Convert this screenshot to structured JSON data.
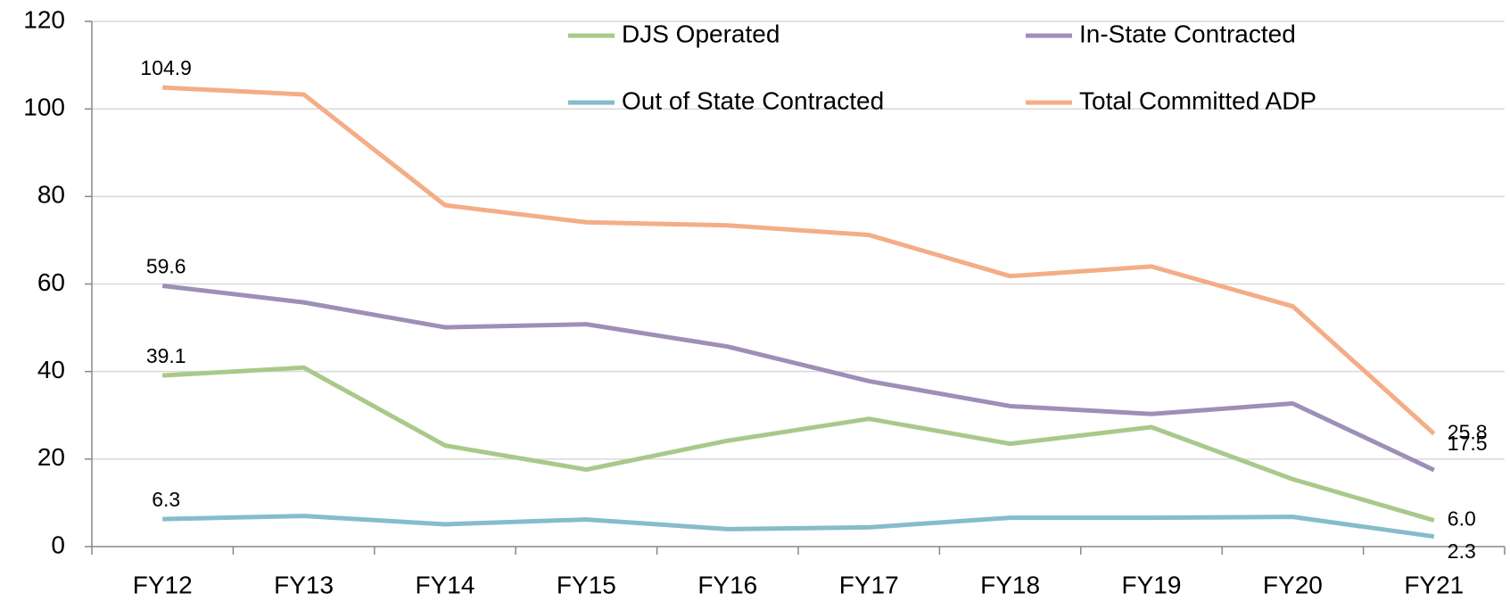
{
  "chart_data": {
    "type": "line",
    "categories": [
      "FY12",
      "FY13",
      "FY14",
      "FY15",
      "FY16",
      "FY17",
      "FY18",
      "FY19",
      "FY20",
      "FY21"
    ],
    "series": [
      {
        "name": "DJS Operated",
        "color": "#a9c98a",
        "values": [
          39.1,
          40.9,
          23.1,
          17.6,
          24.2,
          29.2,
          23.5,
          27.3,
          15.4,
          6.0
        ],
        "value_labels": [
          "39.1",
          null,
          null,
          null,
          null,
          null,
          null,
          null,
          null,
          "6.0"
        ]
      },
      {
        "name": "In-State Contracted",
        "color": "#9d8fb8",
        "values": [
          59.6,
          55.8,
          50.1,
          50.8,
          45.7,
          37.8,
          32.1,
          30.3,
          32.7,
          17.5
        ],
        "value_labels": [
          "59.6",
          null,
          null,
          null,
          null,
          null,
          null,
          null,
          null,
          "17.5"
        ]
      },
      {
        "name": "Out of State Contracted",
        "color": "#86bccb",
        "values": [
          6.3,
          7.0,
          5.1,
          6.2,
          4.0,
          4.4,
          6.6,
          6.6,
          6.8,
          2.3
        ],
        "value_labels": [
          "6.3",
          null,
          null,
          null,
          null,
          null,
          null,
          null,
          null,
          "2.3"
        ]
      },
      {
        "name": "Total Committed ADP",
        "color": "#f4ad86",
        "values": [
          104.9,
          103.3,
          78.0,
          74.1,
          73.4,
          71.2,
          61.8,
          64.0,
          54.9,
          25.8
        ],
        "value_labels": [
          "104.9",
          null,
          null,
          null,
          null,
          null,
          null,
          null,
          null,
          "25.8"
        ]
      }
    ],
    "ylim": [
      0,
      120
    ],
    "yticks": [
      0,
      20,
      40,
      60,
      80,
      100,
      120
    ],
    "grid": true,
    "legend": "top"
  }
}
